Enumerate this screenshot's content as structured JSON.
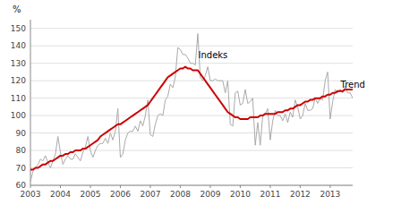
{
  "chart_data": {
    "type": "line",
    "y_label": "%",
    "xlim": [
      2003.0,
      2013.75
    ],
    "ylim": [
      60,
      155
    ],
    "xticks": [
      2003,
      2004,
      2005,
      2006,
      2007,
      2008,
      2009,
      2010,
      2011,
      2012,
      2013
    ],
    "yticks": [
      60,
      70,
      80,
      90,
      100,
      110,
      120,
      130,
      140,
      150
    ],
    "grid": true,
    "x": [
      2003.0,
      2003.0833333333333,
      2003.1666666666667,
      2003.25,
      2003.3333333333333,
      2003.4166666666667,
      2003.5,
      2003.5833333333333,
      2003.6666666666667,
      2003.75,
      2003.8333333333333,
      2003.9166666666667,
      2004.0,
      2004.0833333333333,
      2004.1666666666667,
      2004.25,
      2004.3333333333333,
      2004.4166666666667,
      2004.5,
      2004.5833333333333,
      2004.6666666666667,
      2004.75,
      2004.8333333333333,
      2004.9166666666667,
      2005.0,
      2005.0833333333333,
      2005.1666666666667,
      2005.25,
      2005.3333333333333,
      2005.4166666666667,
      2005.5,
      2005.5833333333333,
      2005.6666666666667,
      2005.75,
      2005.8333333333333,
      2005.9166666666667,
      2006.0,
      2006.0833333333333,
      2006.1666666666667,
      2006.25,
      2006.3333333333333,
      2006.4166666666667,
      2006.5,
      2006.5833333333333,
      2006.6666666666667,
      2006.75,
      2006.8333333333333,
      2006.9166666666667,
      2007.0,
      2007.0833333333333,
      2007.1666666666667,
      2007.25,
      2007.3333333333333,
      2007.4166666666667,
      2007.5,
      2007.5833333333333,
      2007.6666666666667,
      2007.75,
      2007.8333333333333,
      2007.9166666666667,
      2008.0,
      2008.0833333333333,
      2008.1666666666667,
      2008.25,
      2008.3333333333333,
      2008.4166666666667,
      2008.5,
      2008.5833333333333,
      2008.6666666666667,
      2008.75,
      2008.8333333333333,
      2008.9166666666667,
      2009.0,
      2009.0833333333333,
      2009.1666666666667,
      2009.25,
      2009.3333333333333,
      2009.4166666666667,
      2009.5,
      2009.5833333333333,
      2009.6666666666667,
      2009.75,
      2009.8333333333333,
      2009.9166666666667,
      2010.0,
      2010.0833333333333,
      2010.1666666666667,
      2010.25,
      2010.3333333333333,
      2010.4166666666667,
      2010.5,
      2010.5833333333333,
      2010.6666666666667,
      2010.75,
      2010.8333333333333,
      2010.9166666666667,
      2011.0,
      2011.0833333333333,
      2011.1666666666667,
      2011.25,
      2011.3333333333333,
      2011.4166666666667,
      2011.5,
      2011.5833333333333,
      2011.6666666666667,
      2011.75,
      2011.8333333333333,
      2011.9166666666667,
      2012.0,
      2012.0833333333333,
      2012.1666666666667,
      2012.25,
      2012.3333333333333,
      2012.4166666666667,
      2012.5,
      2012.5833333333333,
      2012.6666666666667,
      2012.75,
      2012.8333333333333,
      2012.9166666666667,
      2013.0,
      2013.0833333333333,
      2013.1666666666667,
      2013.25,
      2013.3333333333333,
      2013.4166666666667,
      2013.5,
      2013.5833333333333,
      2013.6666666666667,
      2013.75,
      2013.8333333333333,
      2013.9166666666667
    ],
    "series": [
      {
        "color": "#aaaaaa",
        "values": [
          62,
          68,
          70,
          72,
          75,
          74,
          77,
          73,
          70,
          74,
          78,
          88,
          79,
          72,
          75,
          77,
          75,
          75,
          78,
          76,
          74,
          79,
          82,
          88,
          80,
          76,
          80,
          83,
          84,
          84,
          87,
          84,
          90,
          86,
          91,
          104,
          76,
          78,
          86,
          90,
          91,
          91,
          94,
          91,
          97,
          94,
          100,
          109,
          89,
          88,
          95,
          100,
          101,
          100,
          109,
          111,
          118,
          116,
          122,
          139,
          138,
          135,
          135,
          133,
          130,
          130,
          129,
          147,
          122,
          120,
          123,
          128,
          120,
          120,
          121,
          120,
          120,
          120,
          113,
          120,
          95,
          94,
          113,
          114,
          106,
          107,
          115,
          107,
          108,
          110,
          83,
          96,
          83,
          100,
          101,
          104,
          86,
          97,
          103,
          100,
          100,
          97,
          101,
          96,
          102,
          99,
          109,
          105,
          98,
          100,
          107,
          103,
          103,
          104,
          110,
          107,
          110,
          109,
          120,
          125,
          98,
          108,
          115,
          113,
          115,
          113,
          117,
          113,
          113,
          110,
          113,
          109
        ]
      },
      {
        "color": "#cc0000",
        "values": [
          69,
          69,
          70,
          70,
          71,
          72,
          72,
          73,
          74,
          74,
          75,
          76,
          77,
          77,
          78,
          78,
          79,
          79,
          80,
          80,
          80,
          81,
          81,
          82,
          83,
          84,
          85,
          86,
          88,
          89,
          90,
          91,
          92,
          93,
          94,
          95,
          95,
          96,
          97,
          98,
          99,
          100,
          101,
          102,
          103,
          104,
          105,
          106,
          108,
          110,
          112,
          114,
          116,
          118,
          120,
          122,
          123,
          124,
          125,
          126,
          127,
          127,
          128,
          127,
          127,
          126,
          126,
          126,
          124,
          122,
          120,
          118,
          116,
          114,
          112,
          110,
          108,
          106,
          104,
          102,
          101,
          100,
          99,
          99,
          98,
          98,
          98,
          98,
          99,
          99,
          99,
          99,
          100,
          100,
          101,
          101,
          101,
          101,
          101,
          102,
          102,
          102,
          103,
          103,
          104,
          104,
          105,
          106,
          106,
          107,
          108,
          108,
          109,
          109,
          110,
          110,
          110,
          111,
          111,
          112,
          112,
          113,
          113,
          114,
          114,
          114,
          115,
          115,
          115,
          115,
          115,
          115
        ]
      }
    ],
    "annotations": [
      {
        "text": "Indeks",
        "x": 2008.6,
        "y": 133
      },
      {
        "text": "Trend",
        "x": 2013.35,
        "y": 116
      }
    ]
  }
}
